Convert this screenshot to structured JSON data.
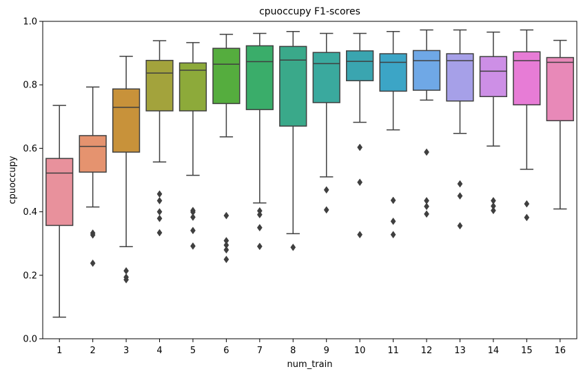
{
  "chart_data": {
    "type": "box",
    "title": "cpuoccupy F1-scores",
    "xlabel": "num_train",
    "ylabel": "cpuoccupy",
    "ylim": [
      0.0,
      1.0
    ],
    "yticks": [
      "0.0",
      "0.2",
      "0.4",
      "0.6",
      "0.8",
      "1.0"
    ],
    "grid": false,
    "categories": [
      "1",
      "2",
      "3",
      "4",
      "5",
      "6",
      "7",
      "8",
      "9",
      "10",
      "11",
      "12",
      "13",
      "14",
      "15",
      "16"
    ],
    "colors": [
      "#e8919c",
      "#e5936f",
      "#c8923a",
      "#a3a33c",
      "#8daa3a",
      "#55ad3e",
      "#3aad6a",
      "#3aa98a",
      "#3aa99e",
      "#3aa5b0",
      "#3ca5c6",
      "#6fa8e6",
      "#a6a0e8",
      "#cd8fe6",
      "#e77cd6",
      "#e889b8"
    ],
    "boxes": [
      {
        "whislo": 0.068,
        "q1": 0.357,
        "med": 0.522,
        "q3": 0.568,
        "whishi": 0.735,
        "fliers": []
      },
      {
        "whislo": 0.415,
        "q1": 0.525,
        "med": 0.606,
        "q3": 0.64,
        "whishi": 0.793,
        "fliers": [
          0.333,
          0.327,
          0.238
        ]
      },
      {
        "whislo": 0.29,
        "q1": 0.588,
        "med": 0.729,
        "q3": 0.787,
        "whishi": 0.89,
        "fliers": [
          0.214,
          0.194,
          0.186
        ]
      },
      {
        "whislo": 0.557,
        "q1": 0.718,
        "med": 0.837,
        "q3": 0.877,
        "whishi": 0.939,
        "fliers": [
          0.456,
          0.435,
          0.4,
          0.379,
          0.334
        ]
      },
      {
        "whislo": 0.515,
        "q1": 0.718,
        "med": 0.846,
        "q3": 0.869,
        "whishi": 0.933,
        "fliers": [
          0.404,
          0.399,
          0.383,
          0.341,
          0.292
        ]
      },
      {
        "whislo": 0.636,
        "q1": 0.741,
        "med": 0.865,
        "q3": 0.915,
        "whishi": 0.959,
        "fliers": [
          0.388,
          0.309,
          0.295,
          0.28,
          0.25
        ]
      },
      {
        "whislo": 0.428,
        "q1": 0.722,
        "med": 0.873,
        "q3": 0.923,
        "whishi": 0.962,
        "fliers": [
          0.403,
          0.391,
          0.35,
          0.291
        ]
      },
      {
        "whislo": 0.331,
        "q1": 0.67,
        "med": 0.878,
        "q3": 0.921,
        "whishi": 0.968,
        "fliers": [
          0.288
        ]
      },
      {
        "whislo": 0.51,
        "q1": 0.744,
        "med": 0.867,
        "q3": 0.902,
        "whishi": 0.962,
        "fliers": [
          0.469,
          0.406
        ]
      },
      {
        "whislo": 0.682,
        "q1": 0.813,
        "med": 0.874,
        "q3": 0.907,
        "whishi": 0.962,
        "fliers": [
          0.603,
          0.493,
          0.328
        ]
      },
      {
        "whislo": 0.658,
        "q1": 0.78,
        "med": 0.871,
        "q3": 0.898,
        "whishi": 0.968,
        "fliers": [
          0.436,
          0.37,
          0.328
        ]
      },
      {
        "whislo": 0.752,
        "q1": 0.783,
        "med": 0.876,
        "q3": 0.908,
        "whishi": 0.973,
        "fliers": [
          0.588,
          0.435,
          0.417,
          0.393
        ]
      },
      {
        "whislo": 0.647,
        "q1": 0.749,
        "med": 0.876,
        "q3": 0.898,
        "whishi": 0.973,
        "fliers": [
          0.488,
          0.45,
          0.356
        ]
      },
      {
        "whislo": 0.607,
        "q1": 0.763,
        "med": 0.843,
        "q3": 0.889,
        "whishi": 0.966,
        "fliers": [
          0.435,
          0.418,
          0.404
        ]
      },
      {
        "whislo": 0.534,
        "q1": 0.737,
        "med": 0.876,
        "q3": 0.904,
        "whishi": 0.973,
        "fliers": [
          0.425,
          0.382
        ]
      },
      {
        "whislo": 0.409,
        "q1": 0.687,
        "med": 0.871,
        "q3": 0.886,
        "whishi": 0.94,
        "fliers": []
      }
    ]
  }
}
